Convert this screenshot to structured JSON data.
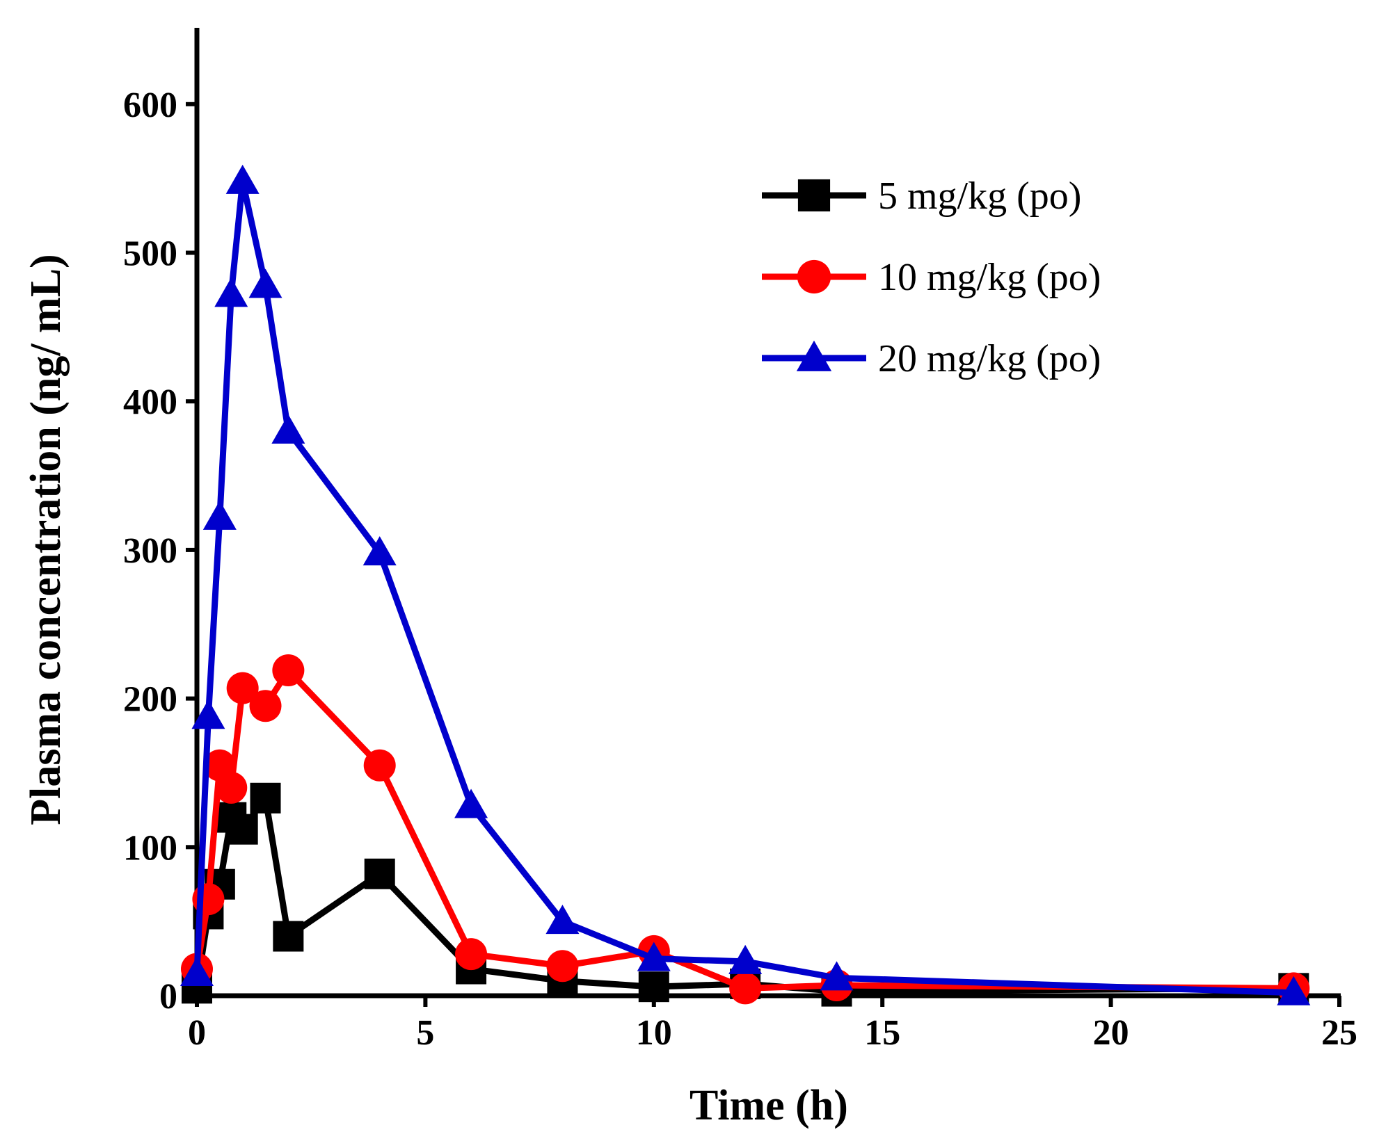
{
  "chart_data": {
    "type": "line",
    "title": "",
    "xlabel": "Time (h)",
    "ylabel": "Plasma concentration (ng/ mL)",
    "xlim": [
      0,
      25
    ],
    "ylim": [
      0,
      650
    ],
    "xticks": [
      0,
      5,
      10,
      15,
      20,
      25
    ],
    "yticks": [
      0,
      100,
      200,
      300,
      400,
      500,
      600
    ],
    "xtick_labels": [
      "0",
      "5",
      "10",
      "15",
      "20",
      "25"
    ],
    "ytick_labels": [
      "0",
      "100",
      "200",
      "300",
      "400",
      "500",
      "600"
    ],
    "grid": false,
    "legend_position": "top-right",
    "series": [
      {
        "name": "5 mg/kg (po)",
        "color": "#000000",
        "marker": "square",
        "x": [
          0,
          0.25,
          0.5,
          0.75,
          1,
          1.5,
          2,
          4,
          6,
          8,
          10,
          12,
          14,
          24
        ],
        "y": [
          5,
          55,
          75,
          120,
          112,
          133,
          40,
          82,
          18,
          10,
          6,
          8,
          3,
          5
        ]
      },
      {
        "name": "10 mg/kg (po)",
        "color": "#ff0000",
        "marker": "circle",
        "x": [
          0,
          0.25,
          0.5,
          0.75,
          1,
          1.5,
          2,
          4,
          6,
          8,
          10,
          12,
          14,
          24
        ],
        "y": [
          18,
          65,
          155,
          140,
          207,
          195,
          219,
          155,
          28,
          20,
          30,
          5,
          7,
          5
        ]
      },
      {
        "name": "20 mg/kg (po)",
        "color": "#0000cc",
        "marker": "triangle",
        "x": [
          0,
          0.25,
          0.5,
          0.75,
          1,
          1.5,
          2,
          4,
          6,
          8,
          10,
          12,
          14,
          24
        ],
        "y": [
          15,
          188,
          322,
          472,
          548,
          478,
          380,
          298,
          128,
          50,
          25,
          23,
          12,
          2
        ]
      }
    ]
  }
}
